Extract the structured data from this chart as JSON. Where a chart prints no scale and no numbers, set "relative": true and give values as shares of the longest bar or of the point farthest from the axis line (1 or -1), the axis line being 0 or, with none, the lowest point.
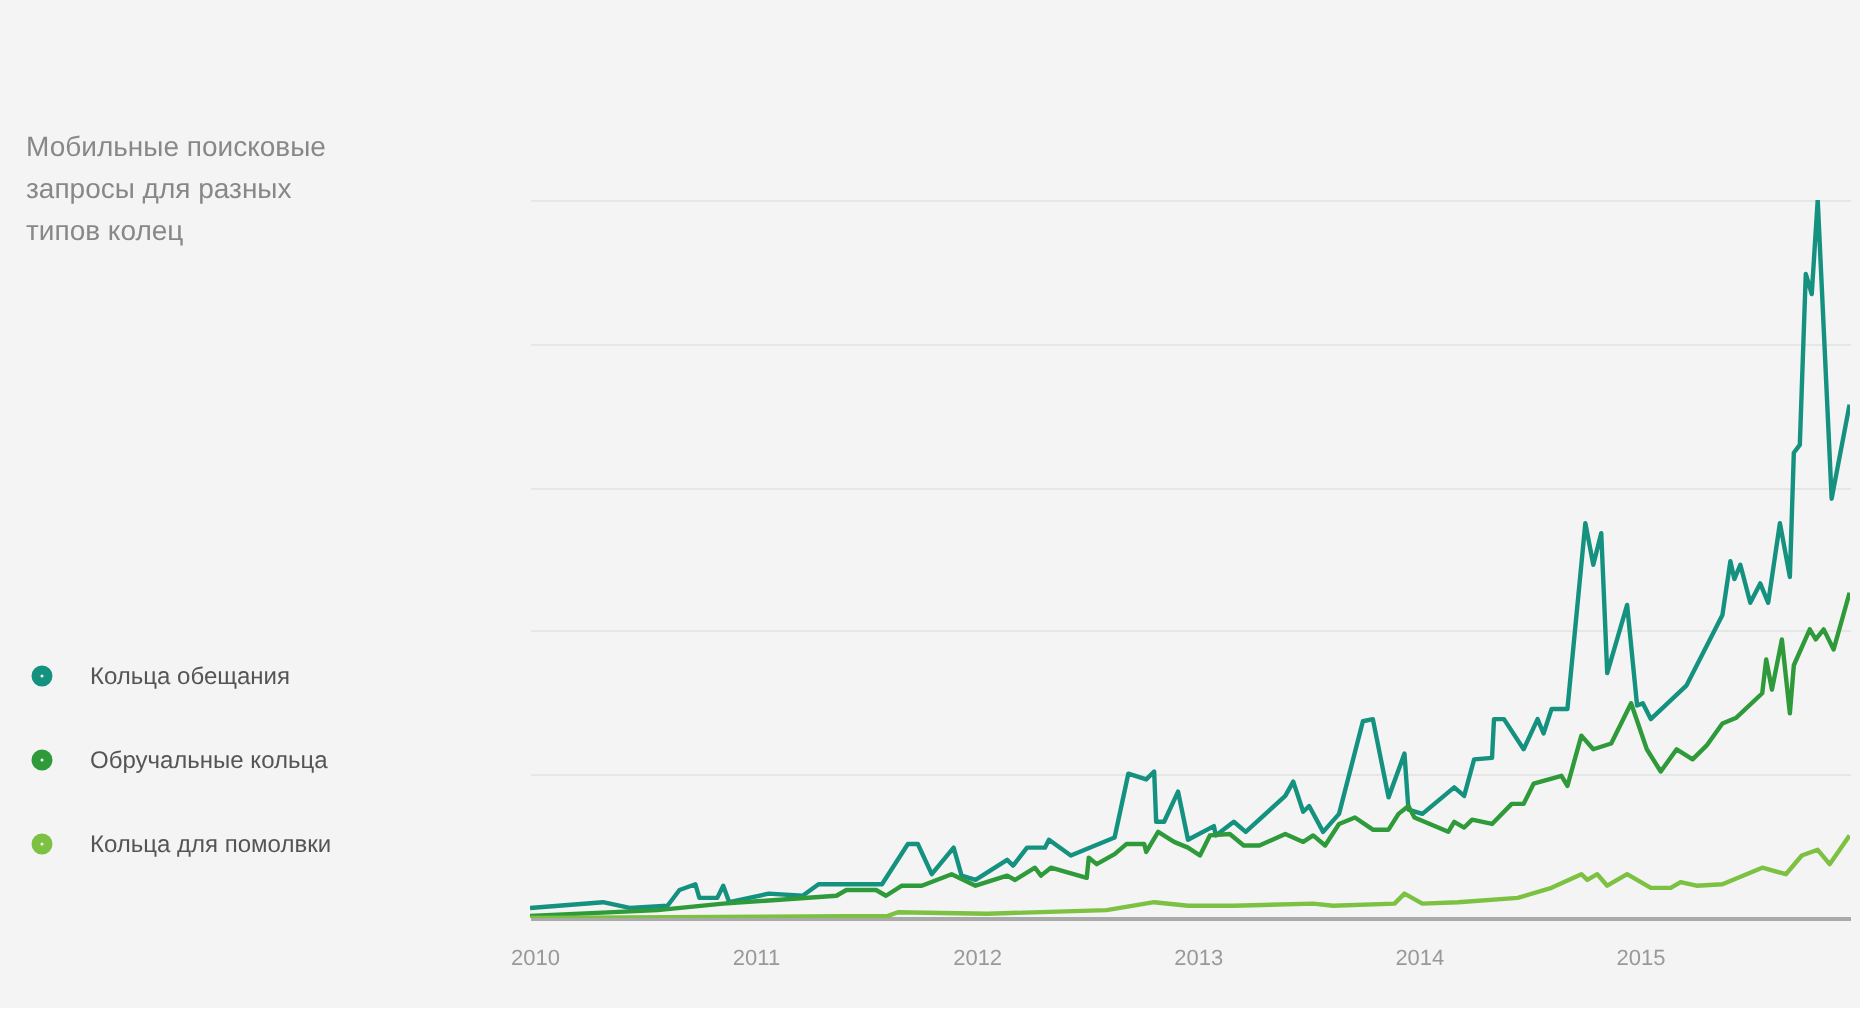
{
  "chart_data": {
    "type": "line",
    "title": "Мобильные поисковые запросы для разных типов колец",
    "relative": true,
    "grid": "y",
    "legend": "left",
    "xlim": [
      2009.98,
      2015.95
    ],
    "xticks": [
      2010,
      2011,
      2012,
      2013,
      2014,
      2015
    ],
    "series": [
      {
        "name": "Кольца обещания",
        "color": "#14917f",
        "x": [
          2009.98,
          2010.31,
          2010.431,
          2010.602,
          2010.656,
          2010.728,
          2010.746,
          2010.827,
          2010.854,
          2010.881,
          2011.06,
          2011.213,
          2011.285,
          2011.572,
          2011.689,
          2011.734,
          2011.797,
          2011.896,
          2011.932,
          2011.995,
          2012.138,
          2012.165,
          2012.228,
          2012.309,
          2012.327,
          2012.426,
          2012.624,
          2012.686,
          2012.767,
          2012.803,
          2012.812,
          2012.848,
          2012.911,
          2012.956,
          2013.073,
          2013.082,
          2013.163,
          2013.217,
          2013.396,
          2013.432,
          2013.477,
          2013.504,
          2013.567,
          2013.639,
          2013.747,
          2013.792,
          2013.863,
          2013.935,
          2013.953,
          2014.016,
          2014.16,
          2014.205,
          2014.25,
          2014.331,
          2014.34,
          2014.385,
          2014.474,
          2014.537,
          2014.564,
          2014.6,
          2014.672,
          2014.753,
          2014.789,
          2014.825,
          2014.852,
          2014.942,
          2014.987,
          2015.013,
          2015.049,
          2015.211,
          2015.373,
          2015.409,
          2015.427,
          2015.454,
          2015.499,
          2015.544,
          2015.58,
          2015.633,
          2015.678,
          2015.696,
          2015.723,
          2015.75,
          2015.777,
          2015.804,
          2015.867,
          2015.948
        ],
        "values": [
          0.014,
          0.022,
          0.014,
          0.017,
          0.039,
          0.047,
          0.028,
          0.028,
          0.045,
          0.022,
          0.034,
          0.031,
          0.047,
          0.047,
          0.103,
          0.103,
          0.061,
          0.098,
          0.059,
          0.053,
          0.081,
          0.073,
          0.098,
          0.098,
          0.109,
          0.087,
          0.112,
          0.201,
          0.193,
          0.204,
          0.134,
          0.134,
          0.176,
          0.109,
          0.128,
          0.115,
          0.134,
          0.12,
          0.17,
          0.19,
          0.148,
          0.156,
          0.12,
          0.145,
          0.274,
          0.277,
          0.168,
          0.229,
          0.151,
          0.145,
          0.182,
          0.17,
          0.221,
          0.223,
          0.277,
          0.277,
          0.235,
          0.277,
          0.257,
          0.291,
          0.291,
          0.55,
          0.492,
          0.536,
          0.341,
          0.436,
          0.296,
          0.299,
          0.277,
          0.324,
          0.422,
          0.497,
          0.472,
          0.492,
          0.439,
          0.466,
          0.439,
          0.55,
          0.475,
          0.648,
          0.659,
          0.897,
          0.869,
          1.0,
          0.584,
          0.715
        ]
      },
      {
        "name": "Обручальные кольца",
        "color": "#2e9a3a",
        "x": [
          2009.98,
          2010.557,
          2010.854,
          2011.366,
          2011.411,
          2011.545,
          2011.59,
          2011.662,
          2011.752,
          2011.887,
          2011.995,
          2012.138,
          2012.174,
          2012.264,
          2012.291,
          2012.336,
          2012.498,
          2012.507,
          2012.543,
          2012.624,
          2012.677,
          2012.758,
          2012.767,
          2012.821,
          2012.893,
          2012.956,
          2013.01,
          2013.055,
          2013.145,
          2013.208,
          2013.279,
          2013.396,
          2013.477,
          2013.522,
          2013.576,
          2013.639,
          2013.711,
          2013.792,
          2013.863,
          2013.908,
          2013.953,
          2013.98,
          2014.133,
          2014.16,
          2014.205,
          2014.241,
          2014.331,
          2014.42,
          2014.474,
          2014.519,
          2014.645,
          2014.672,
          2014.735,
          2014.789,
          2014.87,
          2014.96,
          2015.031,
          2015.094,
          2015.166,
          2015.238,
          2015.301,
          2015.373,
          2015.436,
          2015.553,
          2015.571,
          2015.597,
          2015.642,
          2015.678,
          2015.696,
          2015.768,
          2015.795,
          2015.831,
          2015.876,
          2015.948
        ],
        "values": [
          0.003,
          0.011,
          0.02,
          0.031,
          0.039,
          0.039,
          0.031,
          0.045,
          0.045,
          0.061,
          0.045,
          0.059,
          0.053,
          0.07,
          0.059,
          0.07,
          0.056,
          0.084,
          0.075,
          0.089,
          0.103,
          0.103,
          0.092,
          0.12,
          0.106,
          0.098,
          0.087,
          0.115,
          0.117,
          0.101,
          0.101,
          0.117,
          0.106,
          0.115,
          0.101,
          0.131,
          0.14,
          0.123,
          0.123,
          0.145,
          0.156,
          0.14,
          0.12,
          0.134,
          0.126,
          0.137,
          0.131,
          0.159,
          0.159,
          0.187,
          0.198,
          0.184,
          0.254,
          0.235,
          0.243,
          0.299,
          0.235,
          0.204,
          0.235,
          0.221,
          0.24,
          0.271,
          0.279,
          0.313,
          0.36,
          0.318,
          0.388,
          0.285,
          0.352,
          0.402,
          0.388,
          0.402,
          0.374,
          0.453
        ]
      },
      {
        "name": "Кольца для помолвки",
        "color": "#7cc142",
        "x": [
          2009.98,
          2011.599,
          2011.644,
          2012.049,
          2012.588,
          2012.803,
          2012.956,
          2013.163,
          2013.522,
          2013.612,
          2013.89,
          2013.935,
          2014.016,
          2014.178,
          2014.447,
          2014.6,
          2014.735,
          2014.762,
          2014.807,
          2014.852,
          2014.942,
          2015.049,
          2015.139,
          2015.184,
          2015.256,
          2015.373,
          2015.553,
          2015.66,
          2015.732,
          2015.804,
          2015.858,
          2015.948
        ],
        "values": [
          0.0,
          0.003,
          0.008,
          0.006,
          0.011,
          0.022,
          0.017,
          0.017,
          0.02,
          0.017,
          0.02,
          0.034,
          0.02,
          0.022,
          0.028,
          0.042,
          0.061,
          0.053,
          0.061,
          0.045,
          0.061,
          0.042,
          0.042,
          0.05,
          0.045,
          0.047,
          0.07,
          0.061,
          0.087,
          0.095,
          0.075,
          0.115
        ]
      }
    ]
  }
}
